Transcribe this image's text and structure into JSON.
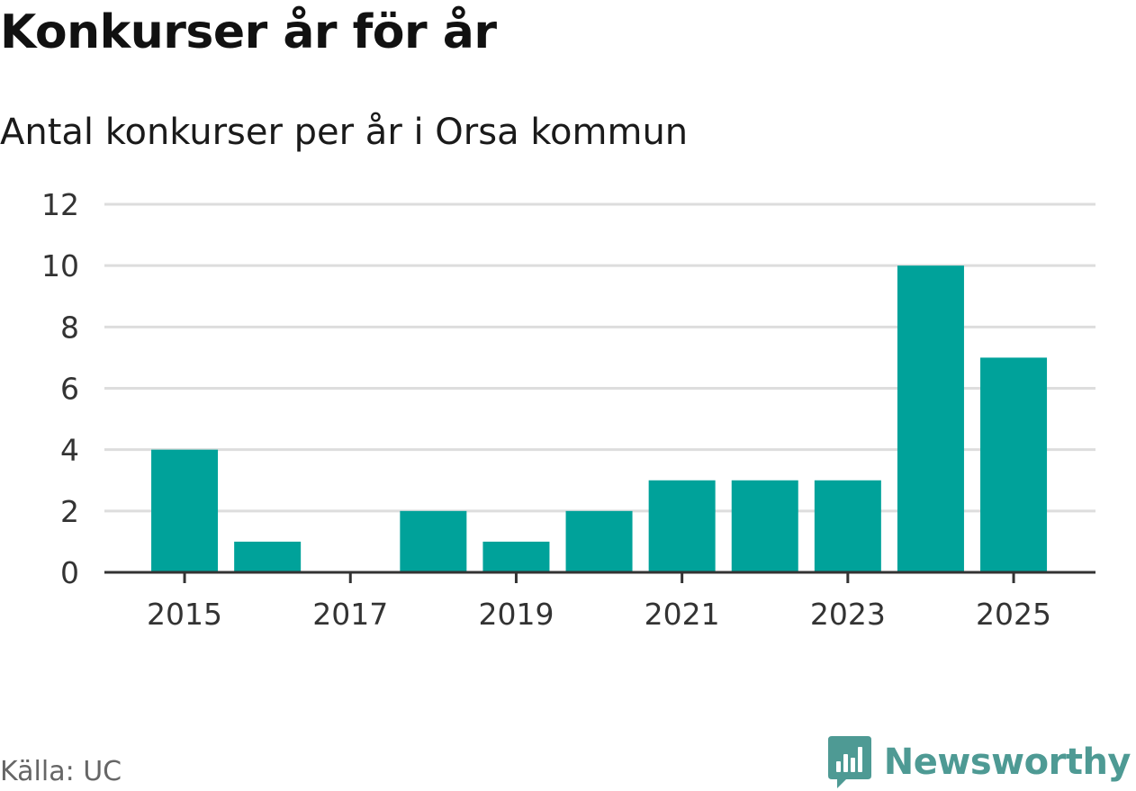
{
  "title": "Konkurser år för år",
  "subtitle": "Antal konkurser per år i Orsa kommun",
  "source": "Källa: UC",
  "brand": "Newsworthy",
  "colors": {
    "bar": "#00a29a",
    "grid": "#dddddd",
    "axis": "#333333",
    "brand": "#4e9a94"
  },
  "chart_data": {
    "type": "bar",
    "title": "Konkurser år för år",
    "subtitle": "Antal konkurser per år i Orsa kommun",
    "xlabel": "",
    "ylabel": "",
    "categories": [
      "2015",
      "2016",
      "2017",
      "2018",
      "2019",
      "2020",
      "2021",
      "2022",
      "2023",
      "2024",
      "2025"
    ],
    "values": [
      4,
      1,
      0,
      2,
      1,
      2,
      3,
      3,
      3,
      10,
      7
    ],
    "x_tick_labels": [
      "2015",
      "2017",
      "2019",
      "2021",
      "2023",
      "2025"
    ],
    "y_ticks": [
      0,
      2,
      4,
      6,
      8,
      10,
      12
    ],
    "ylim": [
      0,
      12
    ],
    "grid": true,
    "legend": "none"
  }
}
